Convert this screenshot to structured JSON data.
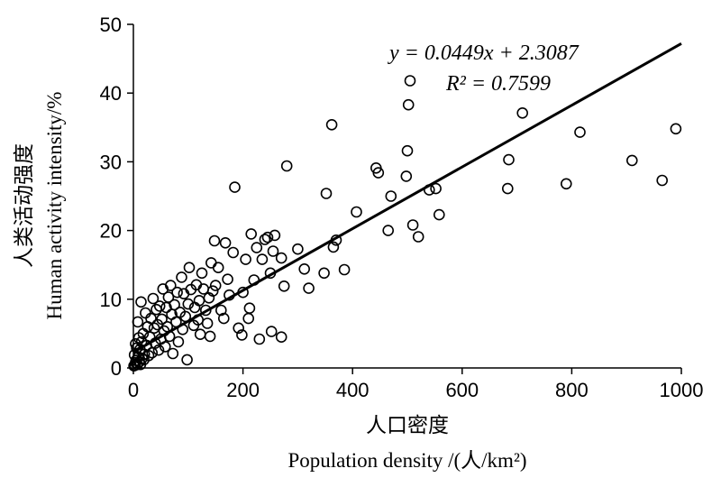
{
  "chart_data": {
    "type": "scatter",
    "xlabel_cn": "人口密度",
    "xlabel_en": "Population density /(人/km²)",
    "ylabel_cn": "人类活动强度",
    "ylabel_en": "Human activity intensity/%",
    "xlim": [
      0,
      1000
    ],
    "ylim": [
      0,
      50
    ],
    "x_ticks": [
      "0",
      "200",
      "400",
      "600",
      "800",
      "1000"
    ],
    "y_ticks": [
      "0",
      "10",
      "20",
      "30",
      "40",
      "50"
    ],
    "grid": false,
    "marker": "open-circle",
    "regression": {
      "slope": 0.0449,
      "intercept": 2.3087,
      "equation_label": "y = 0.0449x + 2.3087",
      "r2_label": "R² = 0.7599"
    },
    "points": [
      [
        990,
        34.8
      ],
      [
        965,
        27.3
      ],
      [
        910,
        30.2
      ],
      [
        815,
        34.3
      ],
      [
        790,
        26.8
      ],
      [
        710,
        37.1
      ],
      [
        685,
        30.3
      ],
      [
        683,
        26.1
      ],
      [
        558,
        22.3
      ],
      [
        552,
        26.1
      ],
      [
        540,
        25.9
      ],
      [
        520,
        19.1
      ],
      [
        510,
        20.8
      ],
      [
        505,
        41.8
      ],
      [
        502,
        38.3
      ],
      [
        500,
        31.6
      ],
      [
        498,
        27.9
      ],
      [
        470,
        25.0
      ],
      [
        465,
        20.0
      ],
      [
        447,
        28.4
      ],
      [
        443,
        29.1
      ],
      [
        407,
        22.7
      ],
      [
        385,
        14.3
      ],
      [
        370,
        18.6
      ],
      [
        365,
        17.6
      ],
      [
        362,
        35.4
      ],
      [
        352,
        25.4
      ],
      [
        348,
        13.8
      ],
      [
        320,
        11.6
      ],
      [
        312,
        14.4
      ],
      [
        300,
        17.3
      ],
      [
        280,
        29.4
      ],
      [
        275,
        11.9
      ],
      [
        270,
        16.0
      ],
      [
        270,
        4.5
      ],
      [
        258,
        19.3
      ],
      [
        255,
        17.0
      ],
      [
        252,
        5.3
      ],
      [
        250,
        13.8
      ],
      [
        245,
        19.0
      ],
      [
        240,
        18.7
      ],
      [
        235,
        15.8
      ],
      [
        230,
        4.2
      ],
      [
        225,
        17.5
      ],
      [
        220,
        12.8
      ],
      [
        215,
        19.5
      ],
      [
        212,
        8.7
      ],
      [
        210,
        7.2
      ],
      [
        205,
        15.8
      ],
      [
        200,
        11.0
      ],
      [
        198,
        4.8
      ],
      [
        192,
        5.8
      ],
      [
        185,
        26.3
      ],
      [
        182,
        16.8
      ],
      [
        175,
        10.6
      ],
      [
        172,
        12.9
      ],
      [
        168,
        18.2
      ],
      [
        165,
        7.2
      ],
      [
        160,
        8.4
      ],
      [
        155,
        14.6
      ],
      [
        150,
        12.0
      ],
      [
        148,
        18.5
      ],
      [
        145,
        11.2
      ],
      [
        142,
        15.3
      ],
      [
        140,
        4.6
      ],
      [
        138,
        10.2
      ],
      [
        135,
        6.5
      ],
      [
        132,
        8.4
      ],
      [
        128,
        11.5
      ],
      [
        125,
        13.8
      ],
      [
        122,
        4.9
      ],
      [
        120,
        9.8
      ],
      [
        118,
        7.0
      ],
      [
        115,
        12.1
      ],
      [
        112,
        8.8
      ],
      [
        110,
        6.2
      ],
      [
        105,
        11.4
      ],
      [
        102,
        14.6
      ],
      [
        100,
        9.3
      ],
      [
        98,
        1.2
      ],
      [
        95,
        7.5
      ],
      [
        92,
        10.8
      ],
      [
        90,
        5.6
      ],
      [
        88,
        13.2
      ],
      [
        85,
        8.1
      ],
      [
        82,
        3.8
      ],
      [
        80,
        11.0
      ],
      [
        78,
        6.7
      ],
      [
        75,
        9.2
      ],
      [
        72,
        2.1
      ],
      [
        70,
        7.8
      ],
      [
        68,
        12.0
      ],
      [
        66,
        4.6
      ],
      [
        64,
        10.3
      ],
      [
        62,
        6.0
      ],
      [
        60,
        8.8
      ],
      [
        58,
        3.1
      ],
      [
        56,
        5.4
      ],
      [
        54,
        11.5
      ],
      [
        52,
        7.1
      ],
      [
        50,
        4.2
      ],
      [
        48,
        9.0
      ],
      [
        46,
        2.6
      ],
      [
        44,
        6.3
      ],
      [
        42,
        8.5
      ],
      [
        40,
        3.6
      ],
      [
        38,
        5.8
      ],
      [
        36,
        10.1
      ],
      [
        34,
        2.2
      ],
      [
        32,
        7.2
      ],
      [
        30,
        4.5
      ],
      [
        28,
        1.8
      ],
      [
        26,
        6.0
      ],
      [
        24,
        3.3
      ],
      [
        22,
        8.0
      ],
      [
        20,
        2.0
      ],
      [
        18,
        5.0
      ],
      [
        16,
        1.4
      ],
      [
        15,
        3.8
      ],
      [
        14,
        9.6
      ],
      [
        12,
        2.7
      ],
      [
        11,
        0.9
      ],
      [
        10,
        4.4
      ],
      [
        9,
        1.6
      ],
      [
        8,
        6.7
      ],
      [
        7,
        0.5
      ],
      [
        6,
        2.9
      ],
      [
        5,
        1.1
      ],
      [
        4,
        3.5
      ],
      [
        3,
        0.4
      ],
      [
        2,
        1.9
      ],
      [
        1,
        0.3
      ],
      [
        4,
        0.8
      ],
      [
        13,
        0.5
      ],
      [
        19,
        1.2
      ]
    ]
  }
}
